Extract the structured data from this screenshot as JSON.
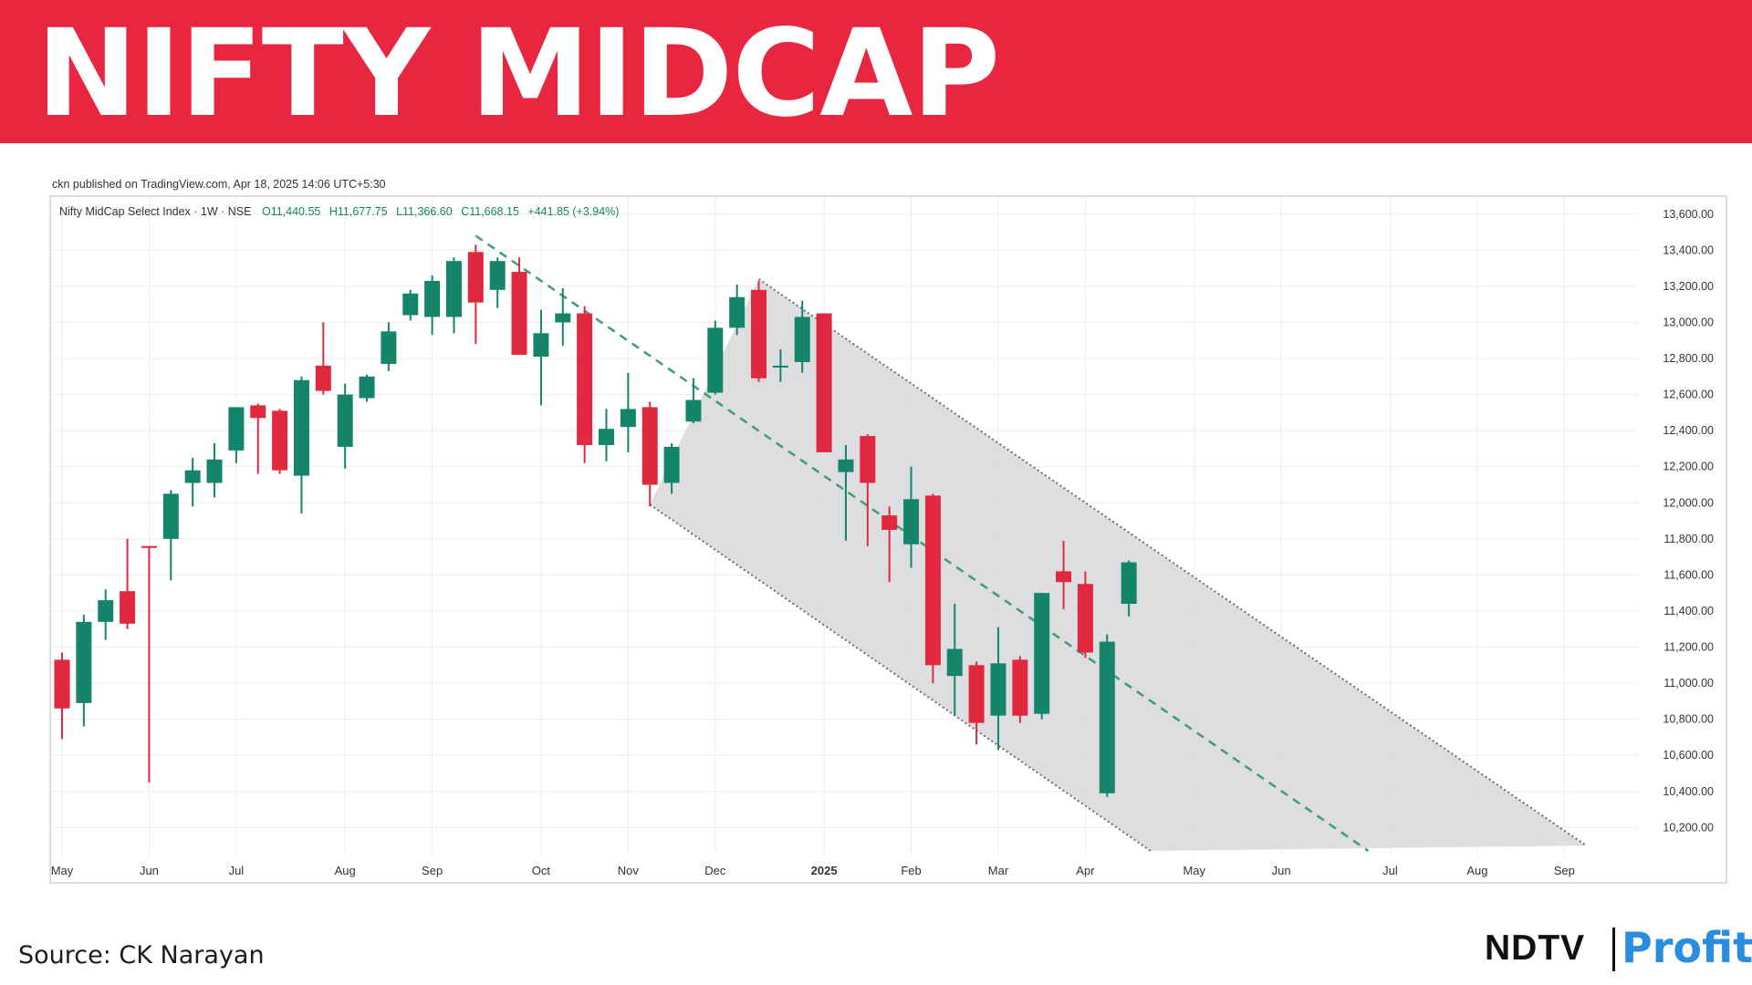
{
  "banner": {
    "title": "NIFTY MIDCAP"
  },
  "footer": {
    "source": "Source: CK Narayan"
  },
  "logo": {
    "brand": "NDTV",
    "product": "Profit"
  },
  "colors": {
    "banner": "#e8263f",
    "up": "#14856a",
    "down": "#e0293f",
    "channel": "#d9d9dc",
    "profit": "#2a8de0"
  },
  "chart_data": {
    "type": "candlestick",
    "published": "ckn published on TradingView.com, Apr 18, 2025 14:06 UTC+5:30",
    "legend": {
      "symbol": "Nifty MidCap Select Index · 1W · NSE",
      "open": "O11,440.55",
      "high": "H11,677.75",
      "low": "L11,366.60",
      "close": "C11,668.15",
      "change": "+441.85 (+3.94%)"
    },
    "ylim": [
      10050,
      13700
    ],
    "y_ticks": [
      10200,
      10400,
      10600,
      10800,
      11000,
      11200,
      11400,
      11600,
      11800,
      12000,
      12200,
      12400,
      12600,
      12800,
      13000,
      13200,
      13400,
      13600
    ],
    "y_tick_labels": [
      "10,200.00",
      "10,400.00",
      "10,600.00",
      "10,800.00",
      "11,000.00",
      "11,200.00",
      "11,400.00",
      "11,600.00",
      "11,800.00",
      "12,000.00",
      "12,200.00",
      "12,400.00",
      "12,600.00",
      "12,800.00",
      "13,000.00",
      "13,200.00",
      "13,400.00",
      "13,600.00"
    ],
    "x_ticks": [
      {
        "label": "May",
        "week": 0
      },
      {
        "label": "Jun",
        "week": 4
      },
      {
        "label": "Jul",
        "week": 8
      },
      {
        "label": "Aug",
        "week": 13
      },
      {
        "label": "Sep",
        "week": 17
      },
      {
        "label": "Oct",
        "week": 22
      },
      {
        "label": "Nov",
        "week": 26
      },
      {
        "label": "Dec",
        "week": 30
      },
      {
        "label": "2025",
        "week": 35
      },
      {
        "label": "Feb",
        "week": 39
      },
      {
        "label": "Mar",
        "week": 43
      },
      {
        "label": "Apr",
        "week": 47
      },
      {
        "label": "May",
        "week": 52
      },
      {
        "label": "Jun",
        "week": 56
      },
      {
        "label": "Jul",
        "week": 61
      },
      {
        "label": "Aug",
        "week": 65
      },
      {
        "label": "Sep",
        "week": 69
      }
    ],
    "candles": [
      {
        "week": 0,
        "o": 11130,
        "h": 11170,
        "l": 10690,
        "c": 10860
      },
      {
        "week": 1,
        "o": 10890,
        "h": 11380,
        "l": 10760,
        "c": 11340
      },
      {
        "week": 2,
        "o": 11340,
        "h": 11520,
        "l": 11240,
        "c": 11460
      },
      {
        "week": 3,
        "o": 11510,
        "h": 11800,
        "l": 11300,
        "c": 11330
      },
      {
        "week": 4,
        "o": 11760,
        "h": 11760,
        "l": 10450,
        "c": 11750
      },
      {
        "week": 5,
        "o": 11800,
        "h": 12070,
        "l": 11570,
        "c": 12050
      },
      {
        "week": 6,
        "o": 12110,
        "h": 12250,
        "l": 11980,
        "c": 12180
      },
      {
        "week": 7,
        "o": 12110,
        "h": 12330,
        "l": 12030,
        "c": 12240
      },
      {
        "week": 8,
        "o": 12290,
        "h": 12530,
        "l": 12220,
        "c": 12530
      },
      {
        "week": 9,
        "o": 12540,
        "h": 12550,
        "l": 12160,
        "c": 12470
      },
      {
        "week": 10,
        "o": 12510,
        "h": 12520,
        "l": 12160,
        "c": 12180
      },
      {
        "week": 11,
        "o": 12150,
        "h": 12700,
        "l": 11940,
        "c": 12680
      },
      {
        "week": 12,
        "o": 12760,
        "h": 13000,
        "l": 12600,
        "c": 12620
      },
      {
        "week": 13,
        "o": 12310,
        "h": 12660,
        "l": 12190,
        "c": 12600
      },
      {
        "week": 14,
        "o": 12580,
        "h": 12710,
        "l": 12560,
        "c": 12700
      },
      {
        "week": 15,
        "o": 12770,
        "h": 13000,
        "l": 12730,
        "c": 12950
      },
      {
        "week": 16,
        "o": 13040,
        "h": 13180,
        "l": 13010,
        "c": 13160
      },
      {
        "week": 17,
        "o": 13030,
        "h": 13260,
        "l": 12930,
        "c": 13230
      },
      {
        "week": 18,
        "o": 13030,
        "h": 13360,
        "l": 12940,
        "c": 13340
      },
      {
        "week": 19,
        "o": 13390,
        "h": 13430,
        "l": 12880,
        "c": 13110
      },
      {
        "week": 20,
        "o": 13180,
        "h": 13360,
        "l": 13080,
        "c": 13340
      },
      {
        "week": 21,
        "o": 13280,
        "h": 13360,
        "l": 12820,
        "c": 12820
      },
      {
        "week": 22,
        "o": 12810,
        "h": 13070,
        "l": 12540,
        "c": 12940
      },
      {
        "week": 23,
        "o": 13000,
        "h": 13190,
        "l": 12870,
        "c": 13050
      },
      {
        "week": 24,
        "o": 13050,
        "h": 13090,
        "l": 12220,
        "c": 12320
      },
      {
        "week": 25,
        "o": 12320,
        "h": 12520,
        "l": 12230,
        "c": 12410
      },
      {
        "week": 26,
        "o": 12420,
        "h": 12720,
        "l": 12280,
        "c": 12520
      },
      {
        "week": 27,
        "o": 12530,
        "h": 12560,
        "l": 11980,
        "c": 12100
      },
      {
        "week": 28,
        "o": 12110,
        "h": 12330,
        "l": 12050,
        "c": 12310
      },
      {
        "week": 29,
        "o": 12450,
        "h": 12690,
        "l": 12440,
        "c": 12570
      },
      {
        "week": 30,
        "o": 12610,
        "h": 13010,
        "l": 12600,
        "c": 12970
      },
      {
        "week": 31,
        "o": 12970,
        "h": 13210,
        "l": 12930,
        "c": 13140
      },
      {
        "week": 32,
        "o": 13180,
        "h": 13230,
        "l": 12670,
        "c": 12690
      },
      {
        "week": 33,
        "o": 12760,
        "h": 12850,
        "l": 12670,
        "c": 12760
      },
      {
        "week": 34,
        "o": 12780,
        "h": 13120,
        "l": 12720,
        "c": 13030
      },
      {
        "week": 35,
        "o": 13050,
        "h": 13050,
        "l": 12280,
        "c": 12280
      },
      {
        "week": 36,
        "o": 12170,
        "h": 12320,
        "l": 11790,
        "c": 12240
      },
      {
        "week": 37,
        "o": 12370,
        "h": 12380,
        "l": 11760,
        "c": 12110
      },
      {
        "week": 38,
        "o": 11930,
        "h": 11980,
        "l": 11560,
        "c": 11850
      },
      {
        "week": 39,
        "o": 11770,
        "h": 12200,
        "l": 11640,
        "c": 12020
      },
      {
        "week": 40,
        "o": 12040,
        "h": 12050,
        "l": 11000,
        "c": 11100
      },
      {
        "week": 41,
        "o": 11040,
        "h": 11440,
        "l": 10820,
        "c": 11190
      },
      {
        "week": 42,
        "o": 11100,
        "h": 11120,
        "l": 10660,
        "c": 10780
      },
      {
        "week": 43,
        "o": 10820,
        "h": 11310,
        "l": 10630,
        "c": 11110
      },
      {
        "week": 44,
        "o": 11130,
        "h": 11150,
        "l": 10780,
        "c": 10820
      },
      {
        "week": 45,
        "o": 10830,
        "h": 11500,
        "l": 10800,
        "c": 11500
      },
      {
        "week": 46,
        "o": 11620,
        "h": 11790,
        "l": 11410,
        "c": 11560
      },
      {
        "week": 47,
        "o": 11550,
        "h": 11620,
        "l": 11140,
        "c": 11170
      },
      {
        "week": 48,
        "o": 10390,
        "h": 11270,
        "l": 10370,
        "c": 11230
      },
      {
        "week": 49,
        "o": 11440,
        "h": 11680,
        "l": 11370,
        "c": 11670
      }
    ],
    "channel": {
      "upper": [
        {
          "week": 32,
          "y": 13240
        },
        {
          "week": 70,
          "y": 10100
        }
      ],
      "lower": [
        {
          "week": 27,
          "y": 11990
        },
        {
          "week": 50,
          "y": 10070
        }
      ],
      "midline": [
        {
          "week": 19,
          "y": 13480
        },
        {
          "week": 60,
          "y": 10070
        }
      ]
    }
  }
}
